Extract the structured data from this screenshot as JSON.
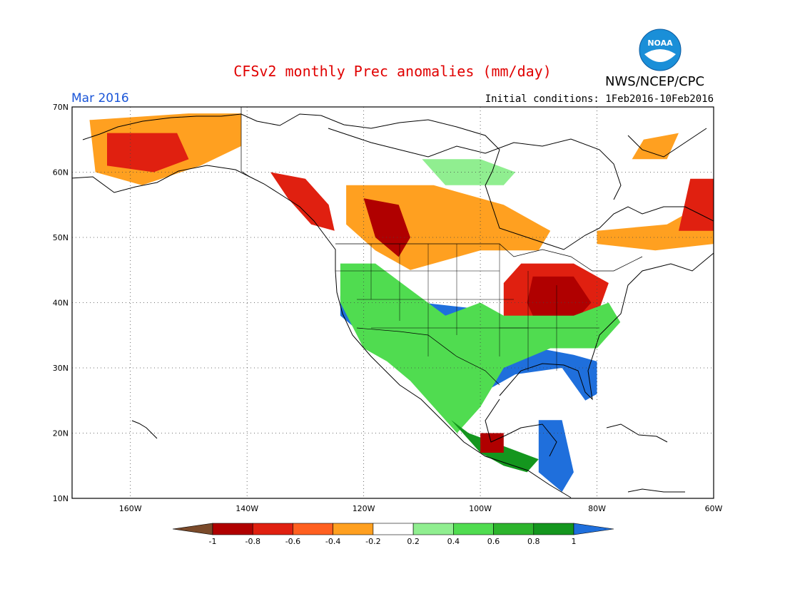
{
  "header": {
    "title": "CFSv2 monthly Prec anomalies (mm/day)",
    "agency": "NWS/NCEP/CPC",
    "month": "Mar 2016",
    "initial_conditions": "Initial conditions: 1Feb2016-10Feb2016"
  },
  "logo": {
    "text": "NOAA",
    "colors": {
      "outer": "#1a8fd8",
      "inner": "#ffffff",
      "gull": "#1a8fd8"
    }
  },
  "axes": {
    "lat_labels": [
      "70N",
      "60N",
      "50N",
      "40N",
      "30N",
      "20N",
      "10N"
    ],
    "lon_labels": [
      "160W",
      "140W",
      "120W",
      "100W",
      "80W",
      "60W"
    ],
    "lat_range": [
      10,
      70
    ],
    "lon_range": [
      -170,
      -60
    ]
  },
  "colorbar": {
    "tick_labels": [
      "-1",
      "-0.8",
      "-0.6",
      "-0.4",
      "-0.2",
      "0.2",
      "0.4",
      "0.6",
      "0.8",
      "1"
    ],
    "colors": [
      "#7a4a2a",
      "#b00000",
      "#e02010",
      "#ff6020",
      "#ffa020",
      "#ffffff",
      "#90ee90",
      "#50dc50",
      "#2cb42c",
      "#14961e",
      "#1f6fdc"
    ]
  },
  "anomaly_regions": [
    {
      "name": "alaska-dry",
      "level": "-0.4",
      "color": "#ffa020",
      "points": [
        [
          -167,
          68
        ],
        [
          -150,
          69
        ],
        [
          -141,
          69
        ],
        [
          -141,
          64
        ],
        [
          -148,
          61
        ],
        [
          -158,
          58
        ],
        [
          -166,
          60
        ]
      ]
    },
    {
      "name": "alaska-dry-strong",
      "level": "-0.6",
      "color": "#e02010",
      "points": [
        [
          -164,
          66
        ],
        [
          -152,
          66
        ],
        [
          -150,
          62
        ],
        [
          -156,
          60
        ],
        [
          -164,
          61
        ]
      ]
    },
    {
      "name": "bc-coast-dry",
      "level": "-0.6",
      "color": "#e02010",
      "points": [
        [
          -136,
          60
        ],
        [
          -130,
          59
        ],
        [
          -126,
          55
        ],
        [
          -125,
          51
        ],
        [
          -129,
          52
        ],
        [
          -133,
          56
        ]
      ]
    },
    {
      "name": "canada-west-dry",
      "level": "-0.4",
      "color": "#ffa020",
      "points": [
        [
          -123,
          58
        ],
        [
          -108,
          58
        ],
        [
          -96,
          55
        ],
        [
          -88,
          51
        ],
        [
          -90,
          48
        ],
        [
          -100,
          48
        ],
        [
          -112,
          45
        ],
        [
          -118,
          48
        ],
        [
          -123,
          52
        ]
      ]
    },
    {
      "name": "alberta-dry-strong",
      "level": "-0.8",
      "color": "#b00000",
      "points": [
        [
          -120,
          56
        ],
        [
          -114,
          55
        ],
        [
          -112,
          50
        ],
        [
          -114,
          47
        ],
        [
          -118,
          50
        ]
      ]
    },
    {
      "name": "ohio-valley-dry",
      "level": "-0.6",
      "color": "#e02010",
      "points": [
        [
          -93,
          46
        ],
        [
          -84,
          46
        ],
        [
          -78,
          43
        ],
        [
          -80,
          38
        ],
        [
          -86,
          34
        ],
        [
          -92,
          34
        ],
        [
          -96,
          38
        ],
        [
          -96,
          43
        ]
      ]
    },
    {
      "name": "ohio-valley-dry-strong",
      "level": "-0.8",
      "color": "#b00000",
      "points": [
        [
          -91,
          44
        ],
        [
          -84,
          44
        ],
        [
          -81,
          40
        ],
        [
          -85,
          36
        ],
        [
          -90,
          36
        ],
        [
          -92,
          40
        ]
      ]
    },
    {
      "name": "quebec-dry",
      "level": "-0.4",
      "color": "#ffa020",
      "points": [
        [
          -80,
          51
        ],
        [
          -68,
          52
        ],
        [
          -62,
          55
        ],
        [
          -60,
          58
        ],
        [
          -60,
          49
        ],
        [
          -70,
          48
        ],
        [
          -80,
          49
        ]
      ]
    },
    {
      "name": "labrador-dry-strong",
      "level": "-0.6",
      "color": "#e02010",
      "points": [
        [
          -64,
          59
        ],
        [
          -60,
          59
        ],
        [
          -60,
          51
        ],
        [
          -66,
          51
        ]
      ]
    },
    {
      "name": "greenland-tip-dry",
      "level": "-0.4",
      "color": "#ffa020",
      "points": [
        [
          -74,
          62
        ],
        [
          -68,
          62
        ],
        [
          -66,
          66
        ],
        [
          -72,
          65
        ]
      ]
    },
    {
      "name": "southwest-wet",
      "level": "1",
      "color": "#1f6fdc",
      "points": [
        [
          -124,
          41
        ],
        [
          -118,
          41
        ],
        [
          -110,
          40
        ],
        [
          -100,
          39
        ],
        [
          -96,
          35
        ],
        [
          -90,
          33
        ],
        [
          -84,
          32
        ],
        [
          -80,
          31
        ],
        [
          -80,
          26
        ],
        [
          -82,
          25
        ],
        [
          -86,
          30
        ],
        [
          -94,
          29
        ],
        [
          -98,
          27
        ],
        [
          -104,
          30
        ],
        [
          -110,
          32
        ],
        [
          -116,
          33
        ],
        [
          -120,
          35
        ],
        [
          -124,
          38
        ]
      ]
    },
    {
      "name": "west-wet-fringe",
      "level": "0.6",
      "color": "#50dc50",
      "points": [
        [
          -124,
          46
        ],
        [
          -118,
          46
        ],
        [
          -112,
          42
        ],
        [
          -106,
          38
        ],
        [
          -100,
          40
        ],
        [
          -96,
          38
        ],
        [
          -84,
          38
        ],
        [
          -78,
          40
        ],
        [
          -76,
          37
        ],
        [
          -80,
          33
        ],
        [
          -88,
          33
        ],
        [
          -96,
          30
        ],
        [
          -100,
          24
        ],
        [
          -104,
          20
        ],
        [
          -106,
          22
        ],
        [
          -112,
          28
        ],
        [
          -116,
          31
        ],
        [
          -120,
          33
        ],
        [
          -124,
          40
        ]
      ]
    },
    {
      "name": "mexico-wet",
      "level": "0.8",
      "color": "#14961e",
      "points": [
        [
          -105,
          22
        ],
        [
          -100,
          17
        ],
        [
          -96,
          15
        ],
        [
          -92,
          14
        ],
        [
          -90,
          16
        ],
        [
          -96,
          18
        ],
        [
          -102,
          20
        ]
      ]
    },
    {
      "name": "central-america-wet",
      "level": "1",
      "color": "#1f6fdc",
      "points": [
        [
          -90,
          22
        ],
        [
          -86,
          22
        ],
        [
          -84,
          14
        ],
        [
          -86,
          11
        ],
        [
          -90,
          14
        ]
      ]
    },
    {
      "name": "hudson-wet",
      "level": "0.4",
      "color": "#90ee90",
      "points": [
        [
          -110,
          62
        ],
        [
          -100,
          62
        ],
        [
          -94,
          60
        ],
        [
          -96,
          58
        ],
        [
          -106,
          58
        ]
      ]
    },
    {
      "name": "mexico-dry",
      "level": "-0.8",
      "color": "#b00000",
      "points": [
        [
          -100,
          20
        ],
        [
          -96,
          20
        ],
        [
          -96,
          17
        ],
        [
          -100,
          17
        ]
      ]
    }
  ]
}
